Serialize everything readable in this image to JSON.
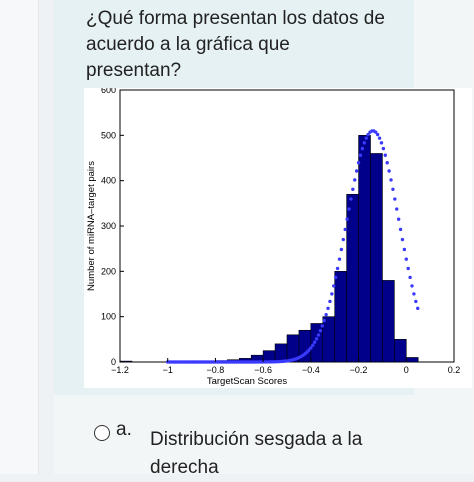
{
  "question": {
    "text": "¿Qué forma presentan los datos de acuerdo a la gráfica que presentan?"
  },
  "option": {
    "letter": "a.",
    "text": "Distribución sesgada a la derecha"
  },
  "chart_data": {
    "type": "bar",
    "title": "",
    "xlabel": "TargetScan Scores",
    "ylabel": "Number of miRNA–target pairs",
    "xlim": [
      -1.2,
      0.2
    ],
    "ylim": [
      0,
      600
    ],
    "x_ticks": [
      "−1.2",
      "−1",
      "−0.8",
      "−0.6",
      "−0.4",
      "−0.2",
      "0",
      "0.2"
    ],
    "y_ticks": [
      "0",
      "100",
      "200",
      "300",
      "400",
      "500",
      "600"
    ],
    "bar_color": "#00008b",
    "fit_color": "#3a3aff",
    "bin_width": 0.05,
    "bins": [
      {
        "x": -1.175,
        "y": 2
      },
      {
        "x": -0.875,
        "y": 1
      },
      {
        "x": -0.825,
        "y": 2
      },
      {
        "x": -0.775,
        "y": 3
      },
      {
        "x": -0.725,
        "y": 5
      },
      {
        "x": -0.675,
        "y": 8
      },
      {
        "x": -0.625,
        "y": 15
      },
      {
        "x": -0.575,
        "y": 25
      },
      {
        "x": -0.525,
        "y": 40
      },
      {
        "x": -0.475,
        "y": 60
      },
      {
        "x": -0.425,
        "y": 70
      },
      {
        "x": -0.375,
        "y": 85
      },
      {
        "x": -0.325,
        "y": 100
      },
      {
        "x": -0.275,
        "y": 200
      },
      {
        "x": -0.225,
        "y": 370
      },
      {
        "x": -0.175,
        "y": 500
      },
      {
        "x": -0.125,
        "y": 460
      },
      {
        "x": -0.075,
        "y": 180
      },
      {
        "x": -0.025,
        "y": 50
      },
      {
        "x": 0.025,
        "y": 10
      }
    ],
    "fit_curve": {
      "type": "gaussian",
      "mean": -0.14,
      "sd": 0.11,
      "peak": 510
    }
  }
}
